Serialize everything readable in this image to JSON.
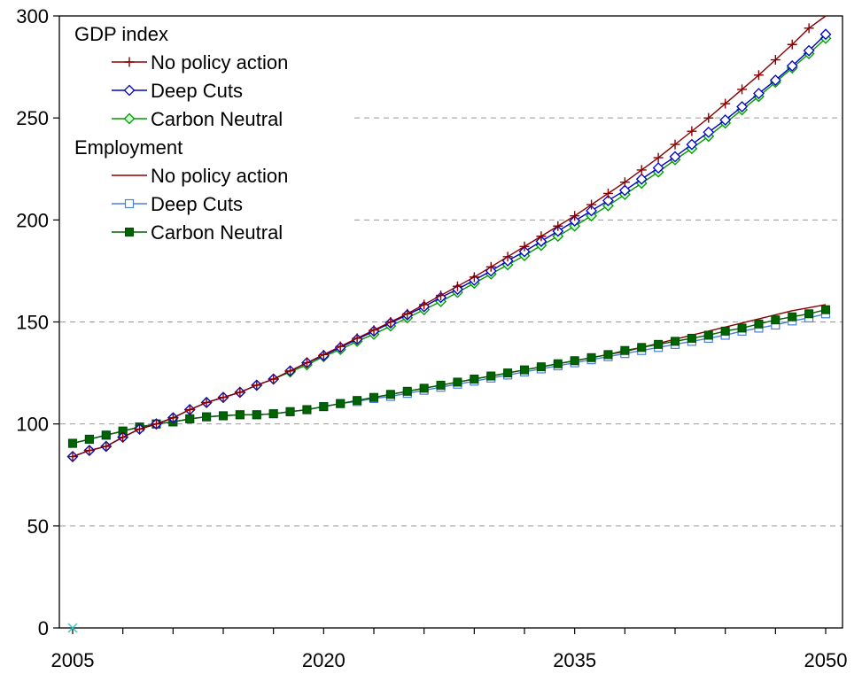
{
  "chart_data": {
    "type": "line",
    "title": "",
    "xlabel": "",
    "ylabel": "",
    "xlim": [
      2005,
      2050
    ],
    "ylim": [
      0,
      300
    ],
    "x_ticks": [
      2005,
      2020,
      2035,
      2050
    ],
    "y_ticks": [
      0,
      50,
      100,
      150,
      200,
      250,
      300
    ],
    "x_tick_labels": [
      "2005",
      "2020",
      "2035",
      "2050"
    ],
    "y_tick_labels": [
      "0",
      "50",
      "100",
      "150",
      "200",
      "250",
      "300"
    ],
    "grid": "horizontal dashed",
    "legend_position": "top-left",
    "legend_groups": [
      {
        "title": "GDP index",
        "entries": [
          "No policy action",
          "Deep Cuts",
          "Carbon Neutral"
        ]
      },
      {
        "title": "Employment",
        "entries": [
          "No policy action",
          "Deep Cuts",
          "Carbon Neutral"
        ]
      }
    ],
    "x": [
      2005,
      2006,
      2007,
      2008,
      2009,
      2010,
      2011,
      2012,
      2013,
      2014,
      2015,
      2016,
      2017,
      2018,
      2019,
      2020,
      2021,
      2022,
      2023,
      2024,
      2025,
      2026,
      2027,
      2028,
      2029,
      2030,
      2031,
      2032,
      2033,
      2034,
      2035,
      2036,
      2037,
      2038,
      2039,
      2040,
      2041,
      2042,
      2043,
      2044,
      2045,
      2046,
      2047,
      2048,
      2049,
      2050
    ],
    "series": [
      {
        "name": "No policy action",
        "group": "GDP index",
        "color": "#8B0000",
        "marker": "plus",
        "values": [
          84,
          87,
          89,
          93.5,
          97.5,
          100,
          103,
          107,
          110.5,
          113,
          115.5,
          119,
          122,
          126,
          130,
          134,
          138,
          142,
          146,
          150,
          154,
          158.5,
          163,
          167.5,
          172,
          177,
          182,
          187,
          192,
          197,
          202,
          207.5,
          213,
          218.5,
          224.5,
          230.5,
          237,
          243.5,
          250,
          257,
          264,
          271,
          278.5,
          286,
          294,
          302
        ]
      },
      {
        "name": "Deep Cuts",
        "group": "GDP index",
        "color": "#0000CD",
        "marker": "diamond-open",
        "values": [
          84,
          87,
          89,
          93.5,
          97.5,
          100,
          103,
          107,
          110.5,
          113,
          115.5,
          119,
          122,
          126,
          130,
          133.5,
          137.5,
          141.5,
          145.5,
          149.5,
          153.5,
          157.5,
          162,
          166,
          170.5,
          175,
          180,
          184.5,
          189.5,
          194.5,
          199.5,
          204.5,
          209.5,
          214.5,
          220,
          225.5,
          231,
          237,
          243,
          249,
          255.5,
          262,
          268.5,
          275.5,
          283,
          291
        ]
      },
      {
        "name": "Carbon Neutral",
        "group": "GDP index",
        "color": "#009900",
        "marker": "diamond-light",
        "values": [
          84,
          87,
          89,
          93.5,
          97.5,
          100,
          103,
          107,
          110.5,
          113,
          115.5,
          119,
          122,
          125.5,
          129,
          133,
          136.5,
          140.5,
          144,
          148,
          152,
          156,
          160,
          164.5,
          169,
          173.5,
          178,
          182.5,
          187.5,
          192,
          197,
          202,
          207,
          212.5,
          218,
          223.5,
          229.5,
          235,
          241,
          247.5,
          254,
          260.5,
          267.5,
          274.5,
          281.5,
          289
        ]
      },
      {
        "name": "No policy action",
        "group": "Employment",
        "color": "#8B0000",
        "marker": "none",
        "values": [
          90.5,
          92.5,
          94.5,
          96.5,
          98.5,
          100,
          101,
          102.5,
          103.5,
          104,
          104.5,
          104.5,
          105,
          106,
          107,
          108.5,
          110,
          111.5,
          113,
          114.5,
          116,
          117.5,
          119,
          120.5,
          122,
          123.5,
          125,
          126.5,
          128,
          129.5,
          131,
          132.5,
          134,
          135.5,
          137.5,
          139.5,
          141.5,
          143.5,
          145.5,
          147.5,
          149.5,
          151.5,
          153.5,
          155.5,
          157,
          158.5
        ]
      },
      {
        "name": "Deep Cuts",
        "group": "Employment",
        "color": "#4A7FE0",
        "marker": "square-open",
        "values": [
          90.5,
          92.5,
          94.5,
          96.5,
          98.5,
          100,
          101,
          102.5,
          103.5,
          104,
          104.5,
          104.5,
          105,
          106,
          107,
          108.5,
          110,
          111,
          112.5,
          113.5,
          115,
          116.5,
          118,
          119.5,
          121,
          122.5,
          124,
          125.5,
          127,
          128.5,
          130,
          131.5,
          133,
          134.5,
          136,
          137.5,
          139,
          140.5,
          142,
          143.5,
          145.5,
          147,
          148.5,
          150.5,
          152,
          154
        ]
      },
      {
        "name": "Carbon Neutral",
        "group": "Employment",
        "color": "#006400",
        "marker": "square-filled",
        "values": [
          90.5,
          92.5,
          94.5,
          96.5,
          98.5,
          100,
          101,
          102.5,
          103.5,
          104,
          104.5,
          104.5,
          105,
          106,
          107,
          108.5,
          110,
          111.5,
          113,
          114.5,
          116,
          117.5,
          119,
          120.5,
          122,
          123.5,
          125,
          126.5,
          128,
          129.5,
          131,
          132.5,
          134,
          136,
          137.5,
          139,
          140.5,
          142,
          143.5,
          145.5,
          147,
          149,
          151,
          152.5,
          154,
          156
        ]
      }
    ]
  }
}
